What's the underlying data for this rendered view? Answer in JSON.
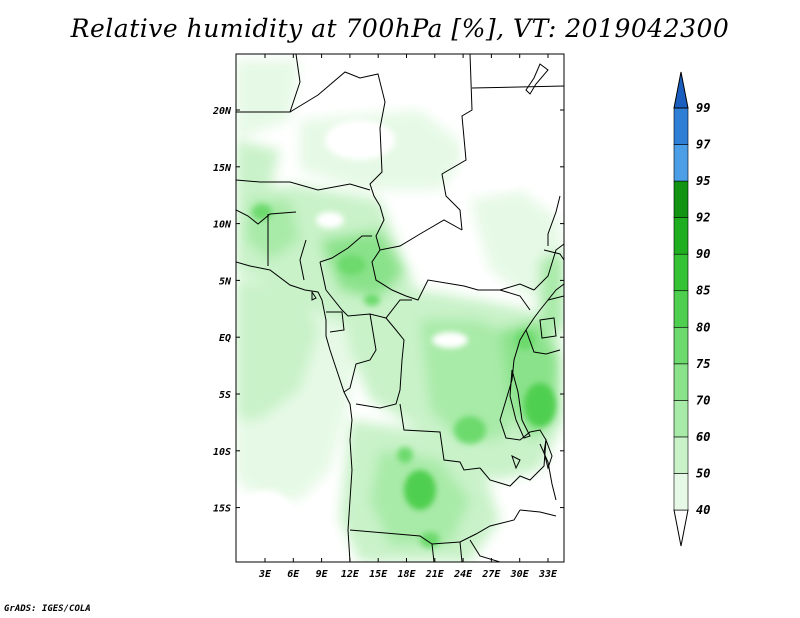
{
  "title": "Relative humidity at 700hPa [%], VT: 2019042300",
  "footer": "GrADS: IGES/COLA",
  "map": {
    "lon_labels": [
      "3E",
      "6E",
      "9E",
      "12E",
      "15E",
      "18E",
      "21E",
      "24E",
      "27E",
      "30E",
      "33E"
    ],
    "lat_labels": [
      "20N",
      "15N",
      "10N",
      "5N",
      "EQ",
      "5S",
      "10S",
      "15S"
    ]
  },
  "colorbar": {
    "levels": [
      "40",
      "50",
      "60",
      "70",
      "75",
      "80",
      "85",
      "90",
      "92",
      "95",
      "97",
      "99"
    ],
    "colors": [
      "#ffffff",
      "#e6f9e6",
      "#c9f2c9",
      "#a8eaa8",
      "#8ae28a",
      "#6dda6d",
      "#4fcf4f",
      "#35c235",
      "#1fae1f",
      "#129412",
      "#4c9ee6",
      "#2f7fd6",
      "#1a5ec0"
    ]
  }
}
